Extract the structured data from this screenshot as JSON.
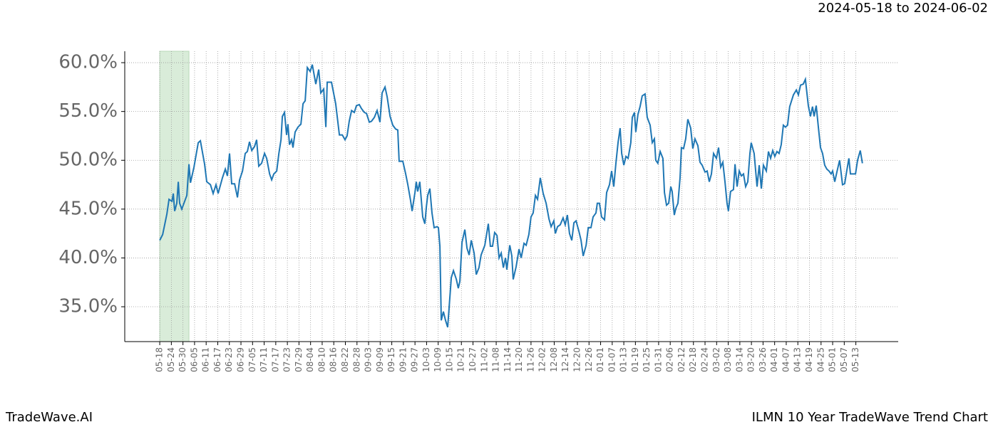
{
  "chart_data": {
    "type": "line",
    "header": "2024-05-18 to 2024-06-02",
    "footer_left": "TradeWave.AI",
    "footer_right": "ILMN 10 Year TradeWave Trend Chart",
    "color": "#1f77b4",
    "shade": {
      "range": [
        0,
        15.1
      ],
      "color": "#d9ecd9"
    },
    "grid": true,
    "xlim": [
      -18.1,
      381.9
    ],
    "ylim": [
      31.43,
      61.17
    ],
    "yticks": [
      {
        "value": 35,
        "label": "35.0%"
      },
      {
        "value": 40,
        "label": "40.0%"
      },
      {
        "value": 45,
        "label": "45.0%"
      },
      {
        "value": 50,
        "label": "50.0%"
      },
      {
        "value": 55,
        "label": "55.0%"
      },
      {
        "value": 60,
        "label": "60.0%"
      }
    ],
    "xticks": [
      {
        "value": 0,
        "label": "05-18"
      },
      {
        "value": 6,
        "label": "05-24"
      },
      {
        "value": 12,
        "label": "05-30"
      },
      {
        "value": 18,
        "label": "06-05"
      },
      {
        "value": 24,
        "label": "06-11"
      },
      {
        "value": 30,
        "label": "06-17"
      },
      {
        "value": 36,
        "label": "06-23"
      },
      {
        "value": 42,
        "label": "06-29"
      },
      {
        "value": 48,
        "label": "07-05"
      },
      {
        "value": 54,
        "label": "07-11"
      },
      {
        "value": 60,
        "label": "07-17"
      },
      {
        "value": 66,
        "label": "07-23"
      },
      {
        "value": 72,
        "label": "07-29"
      },
      {
        "value": 78,
        "label": "08-04"
      },
      {
        "value": 84,
        "label": "08-10"
      },
      {
        "value": 90,
        "label": "08-16"
      },
      {
        "value": 96,
        "label": "08-22"
      },
      {
        "value": 102,
        "label": "08-28"
      },
      {
        "value": 108,
        "label": "09-03"
      },
      {
        "value": 114,
        "label": "09-09"
      },
      {
        "value": 120,
        "label": "09-15"
      },
      {
        "value": 126,
        "label": "09-21"
      },
      {
        "value": 132,
        "label": "09-27"
      },
      {
        "value": 138,
        "label": "10-03"
      },
      {
        "value": 144,
        "label": "10-09"
      },
      {
        "value": 150,
        "label": "10-15"
      },
      {
        "value": 156,
        "label": "10-21"
      },
      {
        "value": 162,
        "label": "10-27"
      },
      {
        "value": 168,
        "label": "11-02"
      },
      {
        "value": 174,
        "label": "11-08"
      },
      {
        "value": 180,
        "label": "11-14"
      },
      {
        "value": 186,
        "label": "11-20"
      },
      {
        "value": 192,
        "label": "11-26"
      },
      {
        "value": 198,
        "label": "12-02"
      },
      {
        "value": 204,
        "label": "12-08"
      },
      {
        "value": 210,
        "label": "12-14"
      },
      {
        "value": 216,
        "label": "12-20"
      },
      {
        "value": 222,
        "label": "12-26"
      },
      {
        "value": 228,
        "label": "01-01"
      },
      {
        "value": 234,
        "label": "01-07"
      },
      {
        "value": 240,
        "label": "01-13"
      },
      {
        "value": 246,
        "label": "01-19"
      },
      {
        "value": 252,
        "label": "01-25"
      },
      {
        "value": 258,
        "label": "01-31"
      },
      {
        "value": 264,
        "label": "02-06"
      },
      {
        "value": 270,
        "label": "02-12"
      },
      {
        "value": 276,
        "label": "02-18"
      },
      {
        "value": 282,
        "label": "02-24"
      },
      {
        "value": 288,
        "label": "03-02"
      },
      {
        "value": 294,
        "label": "03-08"
      },
      {
        "value": 300,
        "label": "03-14"
      },
      {
        "value": 306,
        "label": "03-20"
      },
      {
        "value": 312,
        "label": "03-26"
      },
      {
        "value": 318,
        "label": "04-01"
      },
      {
        "value": 324,
        "label": "04-07"
      },
      {
        "value": 330,
        "label": "04-13"
      },
      {
        "value": 336,
        "label": "04-19"
      },
      {
        "value": 342,
        "label": "04-25"
      },
      {
        "value": 348,
        "label": "05-01"
      },
      {
        "value": 354,
        "label": "05-07"
      },
      {
        "value": 360,
        "label": "05-13"
      }
    ],
    "x": [
      0,
      1.5,
      3.7,
      4.8,
      6.3,
      7.0,
      7.7,
      8.8,
      9.6,
      10.3,
      11.4,
      14.0,
      15.1,
      15.9,
      17.7,
      19.9,
      21.0,
      23.2,
      24.3,
      26.2,
      27.6,
      29.1,
      30.2,
      32.4,
      33.9,
      35.0,
      36.1,
      37.2,
      38.7,
      40.2,
      41.3,
      42.8,
      44.2,
      45.3,
      46.4,
      47.6,
      49.0,
      50.1,
      51.2,
      52.7,
      54.2,
      55.3,
      56.8,
      57.9,
      59.0,
      60.5,
      61.6,
      62.7,
      63.4,
      64.5,
      65.6,
      66.3,
      67.1,
      68.2,
      68.9,
      70.0,
      71.5,
      73.0,
      74.1,
      75.2,
      76.3,
      77.8,
      78.9,
      80.7,
      82.2,
      83.3,
      84.8,
      85.9,
      86.6,
      88.8,
      91.0,
      92.9,
      94.4,
      95.8,
      96.9,
      98.0,
      99.2,
      100.6,
      101.7,
      103.2,
      104.3,
      105.8,
      106.9,
      108.4,
      109.5,
      111.0,
      112.4,
      113.9,
      115.0,
      116.5,
      117.6,
      119.1,
      120.5,
      122.0,
      123.1,
      123.8,
      125.7,
      127.2,
      128.3,
      129.7,
      130.5,
      132.0,
      132.7,
      133.4,
      134.5,
      136.0,
      137.1,
      137.9,
      138.6,
      139.7,
      140.8,
      141.9,
      143.4,
      144.1,
      144.9,
      145.6,
      146.7,
      147.8,
      148.9,
      149.7,
      150.8,
      151.9,
      153.4,
      154.4,
      155.2,
      156.3,
      157.8,
      158.9,
      160.0,
      161.1,
      162.6,
      163.7,
      165.1,
      166.2,
      168.1,
      169.9,
      171.0,
      172.1,
      173.2,
      174.4,
      175.5,
      176.6,
      177.7,
      178.8,
      179.5,
      181.0,
      182.1,
      182.8,
      184.3,
      185.8,
      186.9,
      188.4,
      189.5,
      190.9,
      192.0,
      193.1,
      194.3,
      195.4,
      196.8,
      198.3,
      199.8,
      201.3,
      202.4,
      203.8,
      204.6,
      205.7,
      207.1,
      208.6,
      209.7,
      210.8,
      211.9,
      213.1,
      214.2,
      215.3,
      216.8,
      217.9,
      219.0,
      220.5,
      221.6,
      223.0,
      224.1,
      225.6,
      226.3,
      227.4,
      228.5,
      230.0,
      231.1,
      232.6,
      233.7,
      234.8,
      235.9,
      237.0,
      238.1,
      238.9,
      240.0,
      241.1,
      242.2,
      243.6,
      244.4,
      245.5,
      246.2,
      247.3,
      248.4,
      249.5,
      251.0,
      252.1,
      253.6,
      254.7,
      255.8,
      256.5,
      257.6,
      258.8,
      260.2,
      261.0,
      262.1,
      263.2,
      264.3,
      265.0,
      266.1,
      266.9,
      268.0,
      269.1,
      269.8,
      270.9,
      272.0,
      273.1,
      274.6,
      275.7,
      276.8,
      278.3,
      279.4,
      280.5,
      282.0,
      283.1,
      284.2,
      285.3,
      286.4,
      287.9,
      289.0,
      290.1,
      291.2,
      292.3,
      293.4,
      294.1,
      295.2,
      296.7,
      297.5,
      298.6,
      299.7,
      300.8,
      301.9,
      303.0,
      304.1,
      305.2,
      305.9,
      307.4,
      308.9,
      310.0,
      311.1,
      312.2,
      313.7,
      314.8,
      315.9,
      317.0,
      318.1,
      319.2,
      320.3,
      321.4,
      322.5,
      323.6,
      324.7,
      325.8,
      327.7,
      329.2,
      330.3,
      331.4,
      332.8,
      333.9,
      335.4,
      336.5,
      337.6,
      338.4,
      339.5,
      340.6,
      341.7,
      342.8,
      343.9,
      345.0,
      346.1,
      347.2,
      348.0,
      349.1,
      350.2,
      351.6,
      353.1,
      354.2,
      355.3,
      356.4,
      357.2,
      358.6,
      359.8,
      360.9,
      362.3,
      363.4
    ],
    "values": [
      41.8,
      42.4,
      44.5,
      46,
      45.8,
      46.6,
      44.8,
      45.6,
      47.8,
      45.6,
      45,
      46.4,
      49.6,
      47.7,
      49.3,
      51.8,
      52,
      49.6,
      47.8,
      47.5,
      46.6,
      47.5,
      46.6,
      48.2,
      49.1,
      48.4,
      50.7,
      47.6,
      47.6,
      46.2,
      48,
      48.9,
      50.7,
      50.9,
      51.9,
      51,
      51.4,
      52.1,
      49.4,
      49.7,
      50.7,
      50.2,
      48.6,
      48,
      48.6,
      48.9,
      50.7,
      52.1,
      54.5,
      54.9,
      52.6,
      53.7,
      51.6,
      52.1,
      51.3,
      52.9,
      53.4,
      53.7,
      55.8,
      56.1,
      59.5,
      59.1,
      59.8,
      57.8,
      59.3,
      56.9,
      57.3,
      53.4,
      58,
      58,
      55.8,
      52.6,
      52.6,
      52.1,
      52.5,
      54,
      55.1,
      54.9,
      55.6,
      55.7,
      55.3,
      54.9,
      54.8,
      53.9,
      54,
      54.4,
      55.1,
      53.9,
      56.9,
      57.5,
      56.5,
      54.5,
      53.6,
      53.2,
      53.1,
      49.9,
      49.9,
      48.6,
      47.5,
      45.9,
      44.8,
      46.7,
      47.8,
      46.8,
      47.8,
      44.2,
      43.5,
      45.3,
      46.4,
      47.1,
      44.6,
      43.1,
      43.2,
      43.1,
      41.2,
      33.6,
      34.5,
      33.6,
      32.9,
      35.1,
      38,
      38.7,
      37.8,
      36.9,
      37.6,
      41.6,
      42.9,
      41,
      40.3,
      41.8,
      40.5,
      38.3,
      39,
      40.3,
      41.3,
      43.5,
      41.2,
      41.2,
      42.6,
      42.3,
      40,
      40.5,
      39,
      40,
      38.8,
      41.3,
      40.2,
      37.8,
      39.1,
      40.9,
      40,
      41.5,
      41.3,
      42.4,
      44.2,
      44.6,
      46.4,
      46,
      48.2,
      46.6,
      45.6,
      44,
      43.2,
      43.8,
      42.5,
      43.2,
      43.4,
      44.1,
      43.4,
      44.4,
      42.5,
      41.8,
      43.6,
      43.8,
      42.7,
      41.8,
      40.2,
      41.3,
      43.1,
      43.1,
      44.2,
      44.6,
      45.6,
      45.6,
      44.2,
      43.9,
      46.7,
      47.5,
      48.9,
      47.3,
      49.7,
      51.8,
      53.3,
      50.7,
      49.5,
      50.4,
      50.2,
      51.8,
      54.4,
      54.9,
      52.9,
      54.7,
      55.5,
      56.6,
      56.8,
      54.4,
      53.6,
      51.8,
      52.2,
      50,
      49.7,
      50.9,
      50.2,
      46.7,
      45.4,
      45.6,
      47.3,
      46.8,
      44.4,
      45.1,
      45.6,
      48.2,
      51.3,
      51.2,
      52.2,
      54.2,
      53.3,
      51.2,
      52.2,
      51.5,
      49.8,
      49.5,
      48.8,
      48.9,
      47.8,
      48.6,
      50.7,
      50.2,
      51.3,
      49.3,
      49.8,
      47.8,
      45.6,
      44.8,
      46.8,
      47,
      49.6,
      47.3,
      48.9,
      48.4,
      48.6,
      47.3,
      47.8,
      50.7,
      51.8,
      50.7,
      47.3,
      49.5,
      47.1,
      49.5,
      48.9,
      50.9,
      50.2,
      51,
      50.4,
      50.9,
      50.7,
      51.6,
      53.6,
      53.4,
      53.6,
      55.5,
      56.7,
      57.2,
      56.7,
      57.7,
      57.8,
      58.3,
      55.6,
      54.5,
      55.5,
      54.5,
      55.6,
      53.4,
      51.3,
      50.7,
      49.5,
      49.1,
      48.9,
      48.6,
      48.9,
      47.8,
      48.8,
      50,
      47.5,
      47.6,
      48.9,
      50.2,
      48.6,
      48.6,
      48.6,
      50,
      51,
      49.7
    ]
  }
}
